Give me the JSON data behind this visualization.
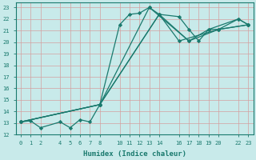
{
  "xlabel": "Humidex (Indice chaleur)",
  "bg_color": "#c8eaea",
  "grid_color_major": "#e8c8c8",
  "grid_color_minor": "#ffffff",
  "line_color": "#1a7a6e",
  "xlim": [
    -0.5,
    23.5
  ],
  "ylim": [
    12,
    23.4
  ],
  "xticks": [
    0,
    1,
    2,
    4,
    5,
    6,
    7,
    8,
    10,
    11,
    12,
    13,
    14,
    16,
    17,
    18,
    19,
    20,
    22,
    23
  ],
  "yticks": [
    12,
    13,
    14,
    15,
    16,
    17,
    18,
    19,
    20,
    21,
    22,
    23
  ],
  "series1": [
    [
      0,
      13.1
    ],
    [
      1,
      13.2
    ],
    [
      2,
      12.6
    ],
    [
      4,
      13.1
    ],
    [
      5,
      12.6
    ],
    [
      6,
      13.3
    ],
    [
      7,
      13.1
    ],
    [
      8,
      14.6
    ],
    [
      10,
      21.5
    ],
    [
      11,
      22.4
    ],
    [
      12,
      22.5
    ],
    [
      13,
      23.0
    ],
    [
      14,
      22.4
    ],
    [
      16,
      22.2
    ],
    [
      17,
      21.1
    ],
    [
      18,
      20.1
    ],
    [
      19,
      21.1
    ],
    [
      20,
      21.1
    ],
    [
      22,
      22.0
    ],
    [
      23,
      21.5
    ]
  ],
  "series2": [
    [
      0,
      13.1
    ],
    [
      8,
      14.6
    ],
    [
      13,
      23.0
    ],
    [
      17,
      20.1
    ],
    [
      20,
      21.1
    ],
    [
      23,
      21.5
    ]
  ],
  "series3": [
    [
      0,
      13.1
    ],
    [
      8,
      14.6
    ],
    [
      14,
      22.4
    ],
    [
      16,
      20.1
    ],
    [
      20,
      21.1
    ],
    [
      23,
      21.5
    ]
  ],
  "series4": [
    [
      0,
      13.1
    ],
    [
      8,
      14.6
    ],
    [
      14,
      22.4
    ],
    [
      17,
      20.1
    ],
    [
      19,
      21.1
    ],
    [
      22,
      22.0
    ],
    [
      23,
      21.5
    ]
  ]
}
